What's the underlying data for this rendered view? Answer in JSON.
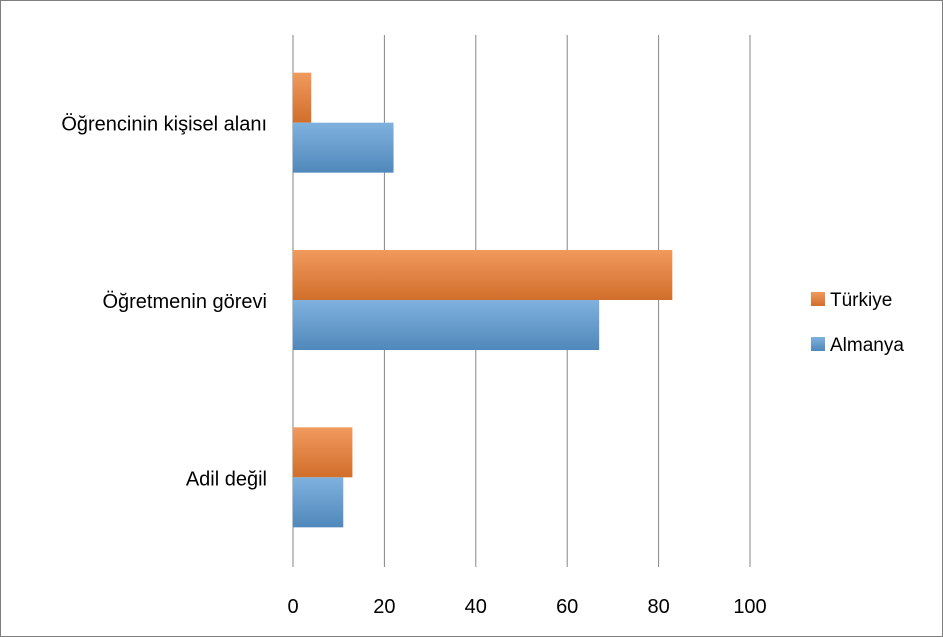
{
  "chart_data": {
    "type": "bar",
    "orientation": "horizontal",
    "categories": [
      "Öğrencinin kişisel alanı",
      "Öğretmenin görevi",
      "Adil değil"
    ],
    "series": [
      {
        "name": "Türkiye",
        "color": "#ED7D31",
        "values": [
          4,
          83,
          13
        ]
      },
      {
        "name": "Almanya",
        "color": "#5B9BD5",
        "values": [
          22,
          67,
          11
        ]
      }
    ],
    "xlim": [
      0,
      100
    ],
    "xticks": [
      0,
      20,
      40,
      60,
      80,
      100
    ],
    "grid": true,
    "legend": "right",
    "title": "",
    "xlabel": "",
    "ylabel": ""
  }
}
